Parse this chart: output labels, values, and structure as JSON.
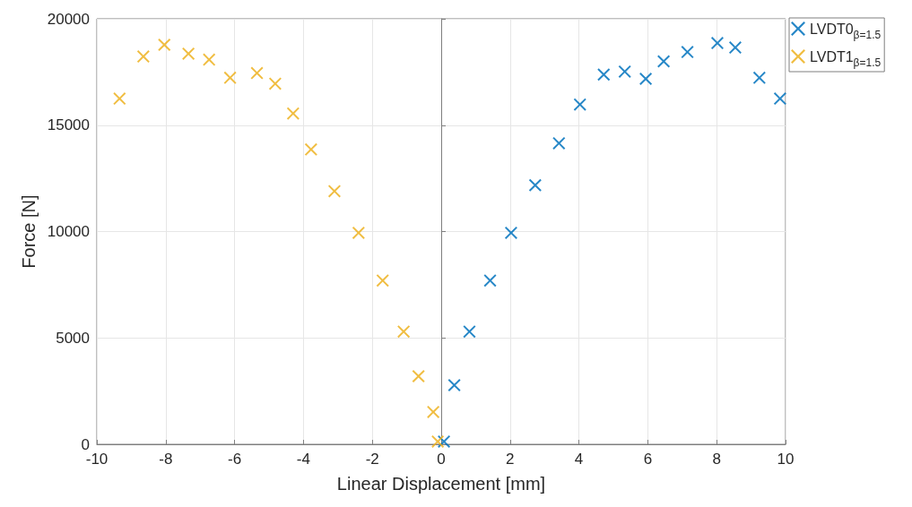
{
  "chart_data": {
    "type": "scatter",
    "xlabel": "Linear Displacement [mm]",
    "ylabel": "Force [N]",
    "xlim": [
      -10,
      10
    ],
    "xticks": [
      -10,
      -8,
      -6,
      -4,
      -2,
      0,
      2,
      4,
      6,
      8,
      10
    ],
    "ylim": [
      0,
      20000
    ],
    "yticks": [
      0,
      5000,
      10000,
      15000,
      20000
    ],
    "grid": true,
    "legend": "top right",
    "marker": "cross",
    "series": [
      {
        "name": "LVDT0$_{β=1.5}$",
        "color": "#0072bd",
        "x": [
          0.08,
          0.38,
          0.82,
          1.42,
          2.03,
          2.73,
          3.42,
          4.03,
          4.72,
          5.33,
          5.94,
          6.46,
          7.15,
          8.02,
          8.54,
          9.24,
          9.84
        ],
        "values": [
          130,
          2780,
          5300,
          7700,
          9940,
          12180,
          14150,
          15970,
          17380,
          17520,
          17180,
          18000,
          18440,
          18860,
          18650,
          17230,
          16250
        ]
      },
      {
        "name": "LVDT1$_{β=1.5}$",
        "color": "#edb120",
        "x": [
          -0.1,
          -0.23,
          -0.66,
          -1.09,
          -1.7,
          -2.4,
          -3.1,
          -3.78,
          -4.3,
          -4.82,
          -5.35,
          -6.13,
          -6.74,
          -7.34,
          -8.04,
          -8.65,
          -9.34
        ],
        "values": [
          130,
          1520,
          3200,
          5300,
          7700,
          9940,
          11900,
          13860,
          15550,
          16950,
          17450,
          17230,
          18080,
          18360,
          18780,
          18230,
          16250
        ]
      }
    ]
  }
}
